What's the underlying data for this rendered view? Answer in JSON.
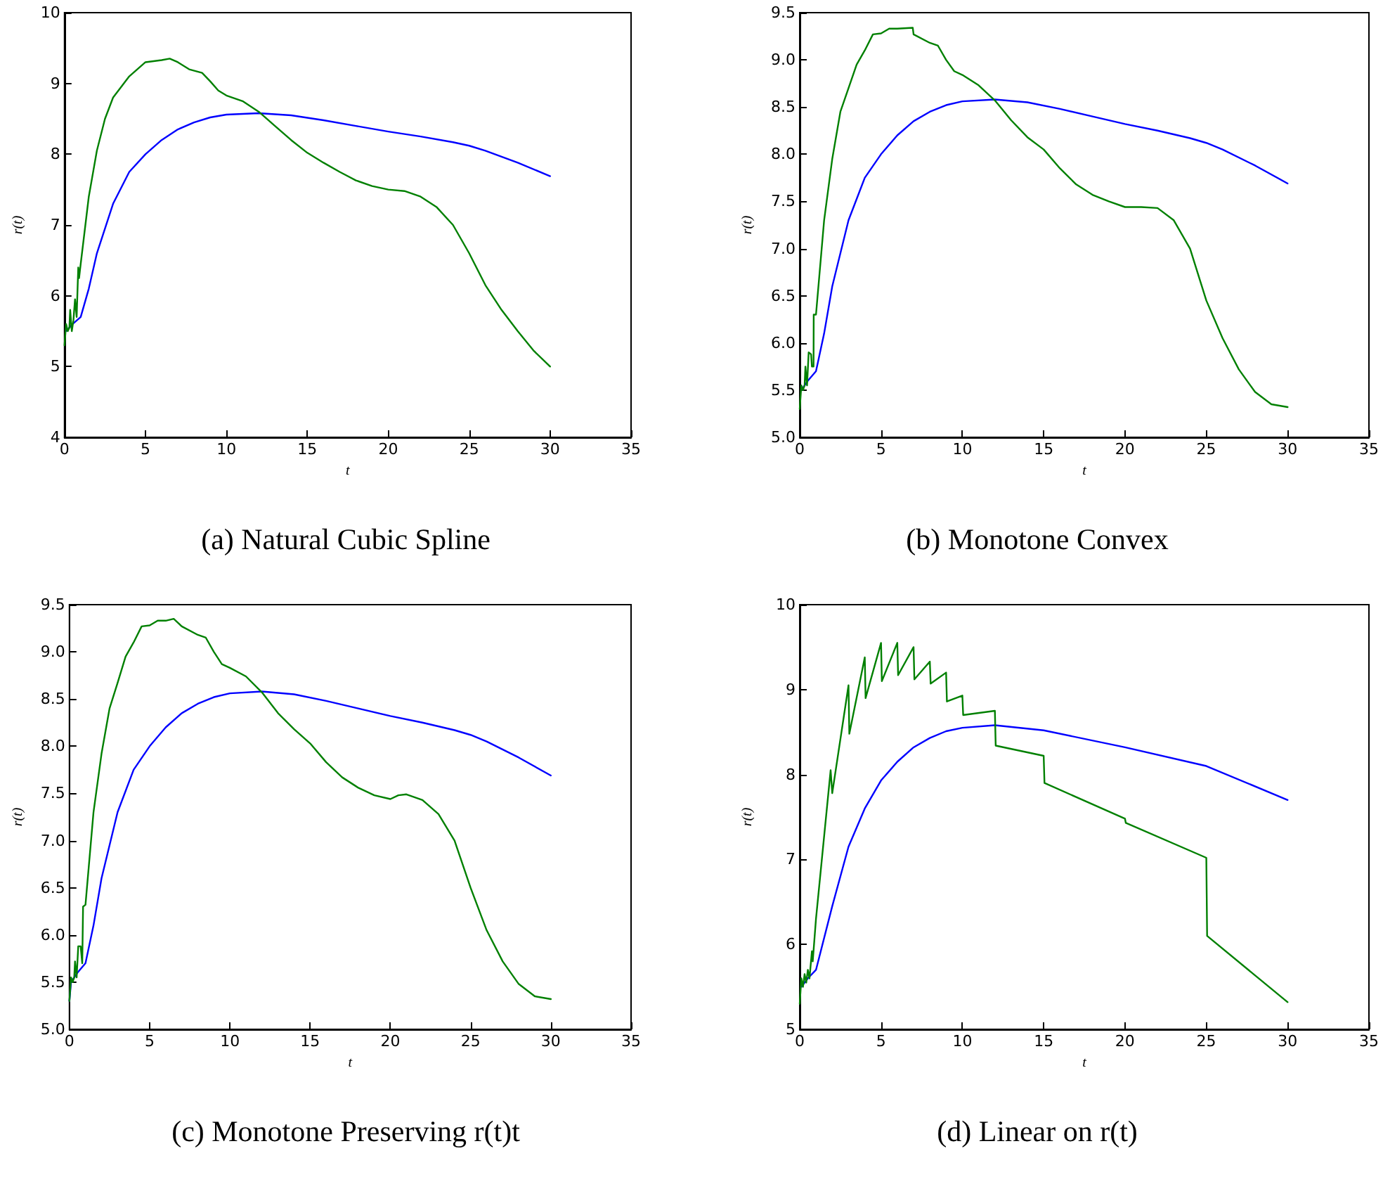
{
  "chart_data": [
    {
      "type": "line",
      "title": "(a) Natural Cubic Spline",
      "xlabel": "t",
      "ylabel": "r(t)",
      "xlim": [
        0,
        35
      ],
      "xticks": [
        0,
        5,
        10,
        15,
        20,
        25,
        30,
        35
      ],
      "ylim": [
        4,
        10
      ],
      "yticks": [
        4,
        5,
        6,
        7,
        8,
        9,
        10
      ],
      "grid": false,
      "marker": "none",
      "line_style": "solid",
      "series": [
        {
          "color": "#0000ff",
          "x": [
            0.1,
            0.5,
            1,
            1.5,
            2,
            3,
            4,
            5,
            6,
            7,
            8,
            9,
            10,
            12,
            14,
            16,
            18,
            20,
            22,
            24,
            25,
            26,
            28,
            30
          ],
          "values": [
            5.5,
            5.6,
            5.7,
            6.1,
            6.6,
            7.3,
            7.75,
            8.0,
            8.2,
            8.35,
            8.45,
            8.52,
            8.56,
            8.58,
            8.55,
            8.48,
            8.4,
            8.32,
            8.25,
            8.17,
            8.12,
            8.05,
            7.88,
            7.69
          ]
        },
        {
          "color": "#008000",
          "x": [
            0,
            0.1,
            0.2,
            0.3,
            0.35,
            0.45,
            0.55,
            0.65,
            0.75,
            0.85,
            0.9,
            1.0,
            1.5,
            2,
            2.5,
            3,
            4,
            5,
            6,
            6.5,
            7,
            7.7,
            8.5,
            9,
            9.5,
            10,
            11,
            12,
            13,
            14,
            15,
            16,
            17,
            18,
            19,
            20,
            21,
            22,
            23,
            24,
            25,
            26,
            27,
            28,
            29,
            30
          ],
          "values": [
            5.3,
            5.6,
            5.5,
            5.55,
            5.8,
            5.5,
            5.65,
            5.95,
            5.7,
            6.4,
            6.25,
            6.45,
            7.4,
            8.05,
            8.5,
            8.8,
            9.1,
            9.3,
            9.33,
            9.35,
            9.3,
            9.2,
            9.15,
            9.03,
            8.9,
            8.83,
            8.75,
            8.6,
            8.4,
            8.2,
            8.02,
            7.88,
            7.75,
            7.63,
            7.55,
            7.5,
            7.48,
            7.4,
            7.25,
            7.0,
            6.6,
            6.15,
            5.8,
            5.5,
            5.22,
            5.0
          ]
        }
      ]
    },
    {
      "type": "line",
      "title": "(b) Monotone Convex",
      "xlabel": "t",
      "ylabel": "r(t)",
      "xlim": [
        0,
        35
      ],
      "xticks": [
        0,
        5,
        10,
        15,
        20,
        25,
        30,
        35
      ],
      "ylim": [
        5,
        9.5
      ],
      "yticks": [
        {
          "value": 5,
          "label": "5.0"
        },
        {
          "value": 5.5,
          "label": "5.5"
        },
        {
          "value": 6,
          "label": "6.0"
        },
        {
          "value": 6.5,
          "label": "6.5"
        },
        {
          "value": 7,
          "label": "7.0"
        },
        {
          "value": 7.5,
          "label": "7.5"
        },
        {
          "value": 8,
          "label": "8.0"
        },
        {
          "value": 8.5,
          "label": "8.5"
        },
        {
          "value": 9,
          "label": "9.0"
        },
        {
          "value": 9.5,
          "label": "9.5"
        }
      ],
      "grid": false,
      "marker": "none",
      "line_style": "solid",
      "series": [
        {
          "color": "#0000ff",
          "x": [
            0.1,
            0.5,
            1,
            1.5,
            2,
            3,
            4,
            5,
            6,
            7,
            8,
            9,
            10,
            12,
            14,
            16,
            18,
            20,
            22,
            24,
            25,
            26,
            28,
            30
          ],
          "values": [
            5.5,
            5.6,
            5.7,
            6.1,
            6.6,
            7.3,
            7.75,
            8.0,
            8.2,
            8.35,
            8.45,
            8.52,
            8.56,
            8.58,
            8.55,
            8.48,
            8.4,
            8.32,
            8.25,
            8.17,
            8.12,
            8.05,
            7.88,
            7.69
          ]
        },
        {
          "color": "#008000",
          "x": [
            0,
            0.1,
            0.2,
            0.3,
            0.35,
            0.45,
            0.55,
            0.7,
            0.75,
            0.85,
            0.86,
            1,
            1.5,
            2,
            2.5,
            3,
            3.5,
            4,
            4.5,
            5,
            5.5,
            6,
            6.95,
            7,
            8,
            8.5,
            9,
            9.5,
            10,
            11,
            12,
            13,
            14,
            15,
            16,
            17,
            18,
            19,
            20,
            21,
            22,
            23,
            24,
            25,
            26,
            27,
            28,
            29,
            30
          ],
          "values": [
            5.3,
            5.55,
            5.5,
            5.55,
            5.75,
            5.55,
            5.9,
            5.88,
            5.75,
            5.75,
            6.3,
            6.3,
            7.3,
            7.95,
            8.45,
            8.7,
            8.95,
            9.1,
            9.27,
            9.28,
            9.33,
            9.33,
            9.34,
            9.27,
            9.18,
            9.15,
            9.0,
            8.88,
            8.84,
            8.73,
            8.57,
            8.36,
            8.18,
            8.05,
            7.85,
            7.68,
            7.57,
            7.5,
            7.44,
            7.44,
            7.43,
            7.3,
            7.0,
            6.45,
            6.05,
            5.72,
            5.48,
            5.35,
            5.32
          ]
        }
      ]
    },
    {
      "type": "line",
      "title": "(c) Monotone Preserving r(t)t",
      "xlabel": "t",
      "ylabel": "r(t)",
      "xlim": [
        0,
        35
      ],
      "xticks": [
        0,
        5,
        10,
        15,
        20,
        25,
        30,
        35
      ],
      "ylim": [
        5,
        9.5
      ],
      "yticks": [
        {
          "value": 5,
          "label": "5.0"
        },
        {
          "value": 5.5,
          "label": "5.5"
        },
        {
          "value": 6,
          "label": "6.0"
        },
        {
          "value": 6.5,
          "label": "6.5"
        },
        {
          "value": 7,
          "label": "7.0"
        },
        {
          "value": 7.5,
          "label": "7.5"
        },
        {
          "value": 8,
          "label": "8.0"
        },
        {
          "value": 8.5,
          "label": "8.5"
        },
        {
          "value": 9,
          "label": "9.0"
        },
        {
          "value": 9.5,
          "label": "9.5"
        }
      ],
      "grid": false,
      "marker": "none",
      "line_style": "solid",
      "series": [
        {
          "color": "#0000ff",
          "x": [
            0,
            0.1,
            0.5,
            1,
            1.5,
            2,
            3,
            4,
            5,
            6,
            7,
            8,
            9,
            10,
            12,
            14,
            16,
            18,
            20,
            22,
            24,
            25,
            26,
            28,
            30
          ],
          "values": [
            5.3,
            5.5,
            5.6,
            5.7,
            6.1,
            6.6,
            7.3,
            7.75,
            8.0,
            8.2,
            8.35,
            8.45,
            8.52,
            8.56,
            8.58,
            8.55,
            8.48,
            8.4,
            8.32,
            8.25,
            8.17,
            8.12,
            8.05,
            7.88,
            7.69
          ]
        },
        {
          "color": "#008000",
          "x": [
            0,
            0.1,
            0.2,
            0.3,
            0.35,
            0.45,
            0.55,
            0.7,
            0.8,
            0.85,
            1,
            1.5,
            2,
            2.5,
            3,
            3.5,
            4,
            4.5,
            5,
            5.5,
            6,
            6.5,
            7,
            8,
            8.5,
            9,
            9.5,
            10,
            11,
            12,
            13,
            14,
            15,
            16,
            17,
            18,
            19,
            20,
            20.5,
            21,
            22,
            23,
            24,
            25,
            26,
            27,
            28,
            29,
            30
          ],
          "values": [
            5.3,
            5.55,
            5.5,
            5.55,
            5.72,
            5.55,
            5.88,
            5.88,
            5.7,
            6.3,
            6.32,
            7.3,
            7.92,
            8.4,
            8.67,
            8.95,
            9.1,
            9.27,
            9.28,
            9.33,
            9.33,
            9.35,
            9.27,
            9.18,
            9.15,
            9.0,
            8.87,
            8.83,
            8.74,
            8.57,
            8.35,
            8.18,
            8.03,
            7.83,
            7.67,
            7.56,
            7.48,
            7.44,
            7.48,
            7.49,
            7.43,
            7.28,
            7.0,
            6.5,
            6.05,
            5.72,
            5.48,
            5.35,
            5.32
          ]
        }
      ]
    },
    {
      "type": "line",
      "title": "(d) Linear on r(t)",
      "xlabel": "t",
      "ylabel": "r(t)",
      "xlim": [
        0,
        35
      ],
      "xticks": [
        0,
        5,
        10,
        15,
        20,
        25,
        30,
        35
      ],
      "ylim": [
        5,
        10
      ],
      "yticks": [
        5,
        6,
        7,
        8,
        9,
        10
      ],
      "grid": false,
      "marker": "none",
      "line_style": "solid",
      "series": [
        {
          "color": "#0000ff",
          "x": [
            0.1,
            0.5,
            1,
            2,
            3,
            4,
            5,
            6,
            7,
            8,
            9,
            10,
            12,
            15,
            20,
            25,
            30
          ],
          "values": [
            5.5,
            5.6,
            5.7,
            6.45,
            7.15,
            7.6,
            7.93,
            8.15,
            8.32,
            8.43,
            8.51,
            8.55,
            8.58,
            8.52,
            8.32,
            8.1,
            7.7
          ]
        },
        {
          "color": "#008000",
          "x": [
            0,
            0.1,
            0.2,
            0.3,
            0.4,
            0.5,
            0.6,
            0.75,
            0.8,
            1,
            1.9,
            2,
            3,
            3.05,
            4,
            4.05,
            5,
            5.05,
            6,
            6.05,
            7,
            7.05,
            8,
            8.05,
            9,
            9.05,
            10,
            10.05,
            12,
            12.05,
            15,
            15.05,
            20,
            20.05,
            25,
            25.05,
            30
          ],
          "values": [
            5.3,
            5.6,
            5.5,
            5.65,
            5.55,
            5.7,
            5.6,
            5.92,
            5.8,
            6.3,
            8.05,
            7.78,
            9.05,
            8.48,
            9.38,
            8.9,
            9.55,
            9.1,
            9.55,
            9.17,
            9.5,
            9.12,
            9.33,
            9.07,
            9.2,
            8.86,
            8.93,
            8.7,
            8.75,
            8.34,
            8.22,
            7.9,
            7.48,
            7.43,
            7.02,
            6.1,
            5.32
          ]
        }
      ]
    }
  ]
}
